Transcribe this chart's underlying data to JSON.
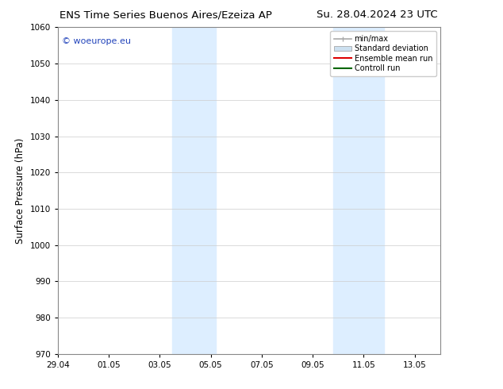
{
  "title_left": "ENS Time Series Buenos Aires/Ezeiza AP",
  "title_right": "Su. 28.04.2024 23 UTC",
  "ylabel": "Surface Pressure (hPa)",
  "ylim": [
    970,
    1060
  ],
  "yticks": [
    970,
    980,
    990,
    1000,
    1010,
    1020,
    1030,
    1040,
    1050,
    1060
  ],
  "xtick_labels": [
    "29.04",
    "01.05",
    "03.05",
    "05.05",
    "07.05",
    "09.05",
    "11.05",
    "13.05"
  ],
  "xtick_positions": [
    0,
    2,
    4,
    6,
    8,
    10,
    12,
    14
  ],
  "xlim": [
    0,
    15
  ],
  "shaded_regions": [
    {
      "x_start": 4.5,
      "x_end": 6.2,
      "color": "#ddeeff"
    },
    {
      "x_start": 10.8,
      "x_end": 12.8,
      "color": "#ddeeff"
    }
  ],
  "watermark_text": "© woeurope.eu",
  "watermark_color": "#2244bb",
  "legend_entries": [
    {
      "label": "min/max",
      "color": "#aaaaaa",
      "type": "line"
    },
    {
      "label": "Standard deviation",
      "color": "#cce0f0",
      "type": "patch"
    },
    {
      "label": "Ensemble mean run",
      "color": "#dd0000",
      "type": "line"
    },
    {
      "label": "Controll run",
      "color": "#006600",
      "type": "line"
    }
  ],
  "background_color": "#ffffff",
  "grid_color": "#cccccc",
  "tick_fontsize": 7.5,
  "title_fontsize": 9.5,
  "ylabel_fontsize": 8.5,
  "font_family": "DejaVu Sans"
}
